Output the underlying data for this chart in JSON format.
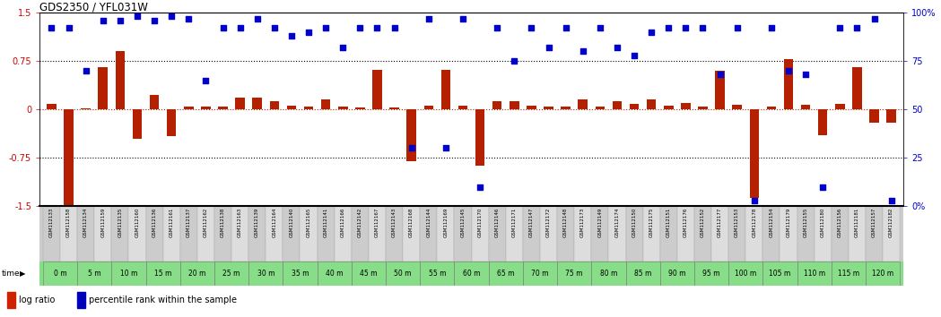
{
  "title": "GDS2350 / YFL031W",
  "samples": [
    "GSM112133",
    "GSM112158",
    "GSM112134",
    "GSM112159",
    "GSM112135",
    "GSM112160",
    "GSM112136",
    "GSM112161",
    "GSM112137",
    "GSM112162",
    "GSM112138",
    "GSM112163",
    "GSM112139",
    "GSM112164",
    "GSM112140",
    "GSM112165",
    "GSM112141",
    "GSM112166",
    "GSM112142",
    "GSM112167",
    "GSM112143",
    "GSM112168",
    "GSM112144",
    "GSM112169",
    "GSM112145",
    "GSM112170",
    "GSM112146",
    "GSM112171",
    "GSM112147",
    "GSM112172",
    "GSM112148",
    "GSM112173",
    "GSM112149",
    "GSM112174",
    "GSM112150",
    "GSM112175",
    "GSM112151",
    "GSM112176",
    "GSM112152",
    "GSM112177",
    "GSM112153",
    "GSM112178",
    "GSM112154",
    "GSM112179",
    "GSM112155",
    "GSM112180",
    "GSM112156",
    "GSM112181",
    "GSM112157",
    "GSM112182"
  ],
  "time_labels": [
    "0 m",
    "5 m",
    "10 m",
    "15 m",
    "20 m",
    "25 m",
    "30 m",
    "35 m",
    "40 m",
    "45 m",
    "50 m",
    "55 m",
    "60 m",
    "65 m",
    "70 m",
    "75 m",
    "80 m",
    "85 m",
    "90 m",
    "95 m",
    "100 m",
    "105 m",
    "110 m",
    "115 m",
    "120 m"
  ],
  "log_ratio": [
    0.08,
    -1.5,
    0.02,
    0.65,
    0.9,
    -0.45,
    0.22,
    -0.42,
    0.04,
    0.05,
    0.04,
    0.18,
    0.18,
    0.12,
    0.06,
    0.05,
    0.16,
    0.05,
    0.03,
    0.62,
    0.03,
    -0.8,
    0.06,
    0.62,
    0.06,
    -0.87,
    0.12,
    0.12,
    0.06,
    0.04,
    0.04,
    0.15,
    0.05,
    0.13,
    0.09,
    0.15,
    0.06,
    0.1,
    0.05,
    0.6,
    0.07,
    -1.38,
    0.04,
    0.78,
    0.07,
    -0.4,
    0.08,
    0.65,
    -0.2,
    -0.2
  ],
  "percentile_rank": [
    92,
    92,
    70,
    96,
    96,
    98,
    96,
    98,
    97,
    65,
    92,
    92,
    97,
    92,
    88,
    90,
    92,
    82,
    92,
    92,
    92,
    30,
    97,
    30,
    97,
    10,
    92,
    75,
    92,
    82,
    92,
    80,
    92,
    82,
    78,
    90,
    92,
    92,
    92,
    68,
    92,
    3,
    92,
    70,
    68,
    10,
    92,
    92,
    97,
    3
  ],
  "bar_color": "#b52000",
  "dot_color": "#0000cc",
  "bg_color": "#ffffff",
  "axis_color_left": "#cc0000",
  "axis_color_right": "#0000cc",
  "ylim_left": [
    -1.5,
    1.5
  ],
  "ylim_right": [
    0,
    100
  ],
  "time_bg_color": "#88dd88",
  "sample_bg_even": "#cccccc",
  "sample_bg_odd": "#dddddd",
  "legend_bar_color": "#cc2200",
  "legend_dot_color": "#0000bb"
}
